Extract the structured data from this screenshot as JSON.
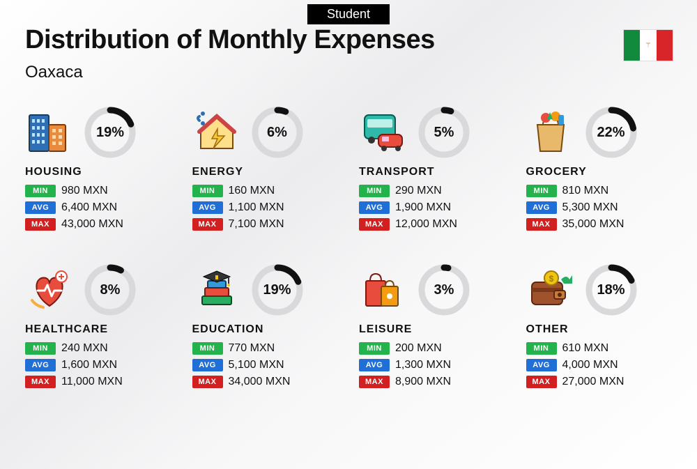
{
  "badge": "Student",
  "title": "Distribution of Monthly Expenses",
  "subtitle": "Oaxaca",
  "currency": "MXN",
  "flag": {
    "left": "#128a3e",
    "center": "#ffffff",
    "right": "#d8252a"
  },
  "donut": {
    "stroke_fg": "#111111",
    "stroke_bg": "#d9d9dc",
    "stroke_width": 9,
    "radius": 32
  },
  "tags": {
    "min": {
      "label": "MIN",
      "bg": "#23b24b"
    },
    "avg": {
      "label": "AVG",
      "bg": "#1f6fd6"
    },
    "max": {
      "label": "MAX",
      "bg": "#d21f1f"
    }
  },
  "categories": [
    {
      "key": "housing",
      "label": "HOUSING",
      "pct": 19,
      "min": "980",
      "avg": "6,400",
      "max": "43,000",
      "icon": "buildings"
    },
    {
      "key": "energy",
      "label": "ENERGY",
      "pct": 6,
      "min": "160",
      "avg": "1,100",
      "max": "7,100",
      "icon": "energy-house"
    },
    {
      "key": "transport",
      "label": "TRANSPORT",
      "pct": 5,
      "min": "290",
      "avg": "1,900",
      "max": "12,000",
      "icon": "bus-car"
    },
    {
      "key": "grocery",
      "label": "GROCERY",
      "pct": 22,
      "min": "810",
      "avg": "5,300",
      "max": "35,000",
      "icon": "grocery-bag"
    },
    {
      "key": "healthcare",
      "label": "HEALTHCARE",
      "pct": 8,
      "min": "240",
      "avg": "1,600",
      "max": "11,000",
      "icon": "health-heart"
    },
    {
      "key": "education",
      "label": "EDUCATION",
      "pct": 19,
      "min": "770",
      "avg": "5,100",
      "max": "34,000",
      "icon": "grad-books"
    },
    {
      "key": "leisure",
      "label": "LEISURE",
      "pct": 3,
      "min": "200",
      "avg": "1,300",
      "max": "8,900",
      "icon": "shopping-bags"
    },
    {
      "key": "other",
      "label": "OTHER",
      "pct": 18,
      "min": "610",
      "avg": "4,000",
      "max": "27,000",
      "icon": "wallet-arrow"
    }
  ]
}
